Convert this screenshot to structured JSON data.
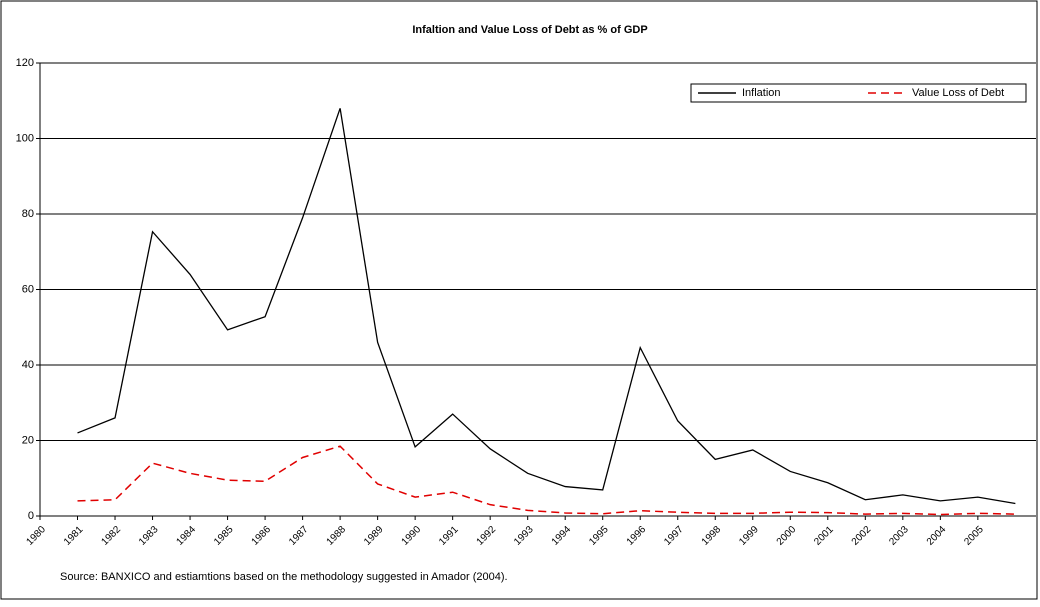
{
  "chart_data": {
    "type": "line",
    "title": "Infaltion and Value Loss of Debt as % of GDP",
    "source": "Source: BANXICO and estiamtions based on the methodology suggested in Amador (2004).",
    "categories": [
      "1980",
      "1981",
      "1982",
      "1983",
      "1984",
      "1985",
      "1986",
      "1987",
      "1988",
      "1989",
      "1990",
      "1991",
      "1992",
      "1993",
      "1994",
      "1995",
      "1996",
      "1997",
      "1998",
      "1999",
      "2000",
      "2001",
      "2002",
      "2003",
      "2004",
      "2005"
    ],
    "series": [
      {
        "name": "Inflation",
        "color": "#000000",
        "dash": false,
        "values": [
          22,
          26,
          75.3,
          64,
          49.3,
          52.8,
          79,
          108,
          46,
          18.3,
          27,
          17.8,
          11.3,
          7.8,
          6.9,
          44.6,
          25.2,
          15,
          17.5,
          11.8,
          8.8,
          4.3,
          5.6,
          4,
          5,
          3.3
        ]
      },
      {
        "name": "Value Loss of Debt",
        "color": "#e00000",
        "dash": true,
        "values": [
          4,
          4.3,
          14,
          11.3,
          9.5,
          9.2,
          15.5,
          18.5,
          8.5,
          5,
          6.3,
          3,
          1.5,
          0.8,
          0.6,
          1.4,
          1,
          0.7,
          0.7,
          1,
          0.9,
          0.5,
          0.7,
          0.4,
          0.7,
          0.5
        ]
      }
    ],
    "ylim": [
      0,
      120
    ],
    "yticks": [
      0,
      20,
      40,
      60,
      80,
      100,
      120
    ],
    "grid": true
  }
}
